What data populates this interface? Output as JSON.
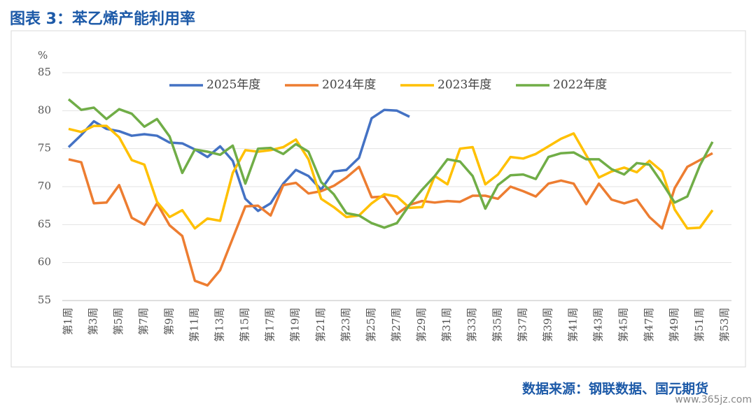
{
  "chart_data": {
    "type": "line",
    "title": "图表 3：苯乙烯产能利用率",
    "y_unit": "%",
    "source": "数据来源：钢联数据、国元期货",
    "watermark": "www.365jz.com",
    "categories": [
      "第1周",
      null,
      "第3周",
      null,
      "第5周",
      null,
      "第7周",
      null,
      "第9周",
      null,
      "第11周",
      null,
      "第13周",
      null,
      "第15周",
      null,
      "第17周",
      null,
      "第19周",
      null,
      "第21周",
      null,
      "第23周",
      null,
      "第25周",
      null,
      "第27周",
      null,
      "第29周",
      null,
      "第31周",
      null,
      "第33周",
      null,
      "第35周",
      null,
      "第37周",
      null,
      "第39周",
      null,
      "第41周",
      null,
      "第43周",
      null,
      "第45周",
      null,
      "第47周",
      null,
      "第49周",
      null,
      "第51周",
      null,
      "第53周"
    ],
    "series": [
      {
        "name": "2025年度",
        "color": "#4472c4",
        "values": [
          75.2,
          76.8,
          78.6,
          77.6,
          77.3,
          76.7,
          76.9,
          76.7,
          75.8,
          75.7,
          74.9,
          73.9,
          75.3,
          73.4,
          68.4,
          66.8,
          67.8,
          70.4,
          72.2,
          71.4,
          69.6,
          72.0,
          72.2,
          73.8,
          79.0,
          80.1,
          80.0,
          79.2,
          null,
          null,
          null,
          null,
          null,
          null,
          null,
          null,
          null,
          null,
          null,
          null,
          null,
          null,
          null,
          null,
          null,
          null,
          null,
          null,
          null,
          null,
          null,
          null,
          null
        ]
      },
      {
        "name": "2024年度",
        "color": "#ed7d31",
        "values": [
          73.6,
          73.2,
          67.8,
          67.9,
          70.2,
          65.9,
          65.0,
          67.8,
          64.9,
          63.5,
          57.6,
          57.0,
          59.0,
          63.2,
          67.4,
          67.5,
          66.2,
          70.2,
          70.5,
          69.1,
          69.4,
          70.1,
          71.2,
          72.6,
          68.6,
          68.7,
          66.4,
          67.6,
          68.1,
          67.9,
          68.1,
          68.0,
          68.8,
          68.8,
          68.4,
          70.0,
          69.4,
          68.7,
          70.4,
          70.8,
          70.4,
          67.7,
          70.4,
          68.3,
          67.8,
          68.3,
          66.0,
          64.5,
          69.8,
          72.6,
          73.5,
          74.4,
          null
        ]
      },
      {
        "name": "2023年度",
        "color": "#ffc000",
        "values": [
          77.6,
          77.2,
          78.0,
          78.0,
          76.5,
          73.5,
          72.9,
          68.0,
          66.0,
          66.9,
          64.5,
          65.8,
          65.5,
          71.8,
          74.8,
          74.6,
          74.8,
          75.2,
          76.2,
          73.6,
          68.4,
          67.3,
          66.0,
          66.2,
          67.8,
          69.0,
          68.7,
          67.2,
          67.3,
          71.4,
          70.3,
          75.0,
          75.2,
          70.3,
          71.6,
          73.9,
          73.7,
          74.3,
          75.3,
          76.3,
          77.0,
          74.1,
          71.2,
          72.0,
          72.5,
          71.9,
          73.4,
          72.0,
          67.0,
          64.5,
          64.6,
          66.9,
          null
        ]
      },
      {
        "name": "2022年度",
        "color": "#70ad47",
        "values": [
          81.5,
          80.1,
          80.4,
          78.9,
          80.2,
          79.6,
          77.9,
          78.9,
          76.6,
          71.8,
          74.9,
          74.6,
          74.2,
          75.4,
          70.4,
          75.0,
          75.1,
          74.3,
          75.6,
          74.6,
          70.6,
          69.0,
          66.5,
          66.2,
          65.2,
          64.6,
          65.2,
          67.6,
          69.6,
          71.4,
          73.6,
          73.3,
          71.4,
          67.1,
          70.2,
          71.5,
          71.6,
          71.0,
          73.9,
          74.4,
          74.5,
          73.6,
          73.6,
          72.3,
          71.6,
          73.1,
          72.9,
          70.5,
          67.9,
          68.7,
          72.8,
          75.9,
          null
        ]
      }
    ],
    "ylim": [
      55,
      85
    ],
    "yticks": [
      55,
      60,
      65,
      70,
      75,
      80,
      85
    ],
    "grid": true,
    "legend": "top"
  }
}
